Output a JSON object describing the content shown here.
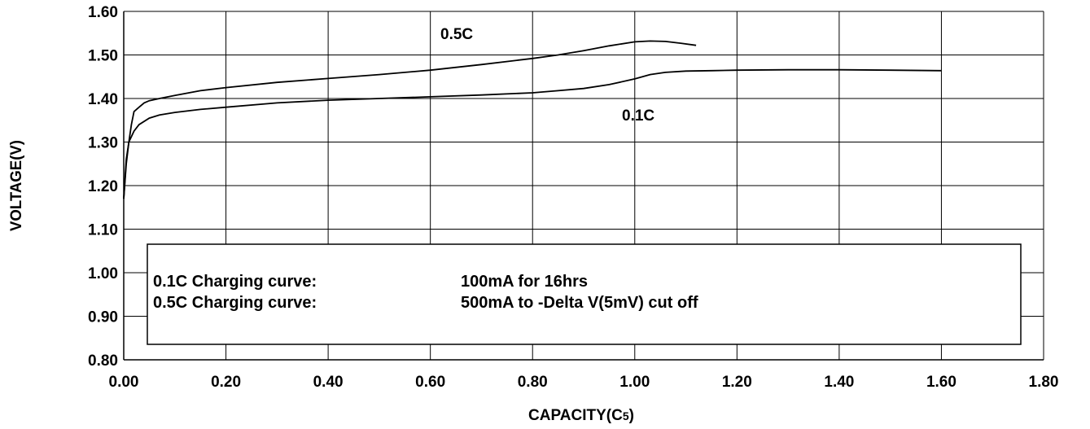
{
  "chart_data": {
    "type": "line",
    "xlabel": "CAPACITY(C5)",
    "xlabel_main": "CAPACITY(C",
    "xlabel_sub": "5",
    "xlabel_end": ")",
    "ylabel": "VOLTAGE(V)",
    "xlim": [
      0.0,
      1.8
    ],
    "ylim": [
      0.8,
      1.6
    ],
    "x_ticks": [
      "0.00",
      "0.20",
      "0.40",
      "0.60",
      "0.80",
      "1.00",
      "1.20",
      "1.40",
      "1.60",
      "1.80"
    ],
    "y_ticks": [
      "0.80",
      "0.90",
      "1.00",
      "1.10",
      "1.20",
      "1.30",
      "1.40",
      "1.50",
      "1.60"
    ],
    "grid": true,
    "series": [
      {
        "name": "0.5C",
        "x": [
          0.0,
          0.005,
          0.01,
          0.015,
          0.02,
          0.03,
          0.04,
          0.05,
          0.07,
          0.1,
          0.15,
          0.2,
          0.3,
          0.4,
          0.5,
          0.6,
          0.7,
          0.8,
          0.85,
          0.9,
          0.95,
          1.0,
          1.03,
          1.06,
          1.09,
          1.12
        ],
        "y": [
          1.17,
          1.25,
          1.3,
          1.34,
          1.37,
          1.38,
          1.39,
          1.395,
          1.4,
          1.407,
          1.418,
          1.425,
          1.437,
          1.446,
          1.455,
          1.465,
          1.478,
          1.492,
          1.5,
          1.51,
          1.521,
          1.53,
          1.532,
          1.531,
          1.527,
          1.522
        ]
      },
      {
        "name": "0.1C",
        "x": [
          0.0,
          0.005,
          0.01,
          0.02,
          0.03,
          0.05,
          0.07,
          0.1,
          0.15,
          0.2,
          0.3,
          0.4,
          0.5,
          0.6,
          0.7,
          0.8,
          0.85,
          0.9,
          0.95,
          1.0,
          1.03,
          1.06,
          1.1,
          1.15,
          1.2,
          1.3,
          1.4,
          1.5,
          1.6
        ],
        "y": [
          1.17,
          1.26,
          1.3,
          1.325,
          1.34,
          1.355,
          1.362,
          1.368,
          1.375,
          1.38,
          1.39,
          1.396,
          1.4,
          1.404,
          1.408,
          1.413,
          1.418,
          1.423,
          1.432,
          1.445,
          1.455,
          1.46,
          1.463,
          1.464,
          1.465,
          1.466,
          1.466,
          1.465,
          1.464
        ]
      }
    ],
    "annotations": [
      "0.5C",
      "0.1C"
    ]
  },
  "legend_box": {
    "row1_label": "0.1C Charging curve:",
    "row1_value": "100mA for 16hrs",
    "row2_label": "0.5C Charging curve:",
    "row2_value": "500mA to -Delta V(5mV) cut off"
  }
}
